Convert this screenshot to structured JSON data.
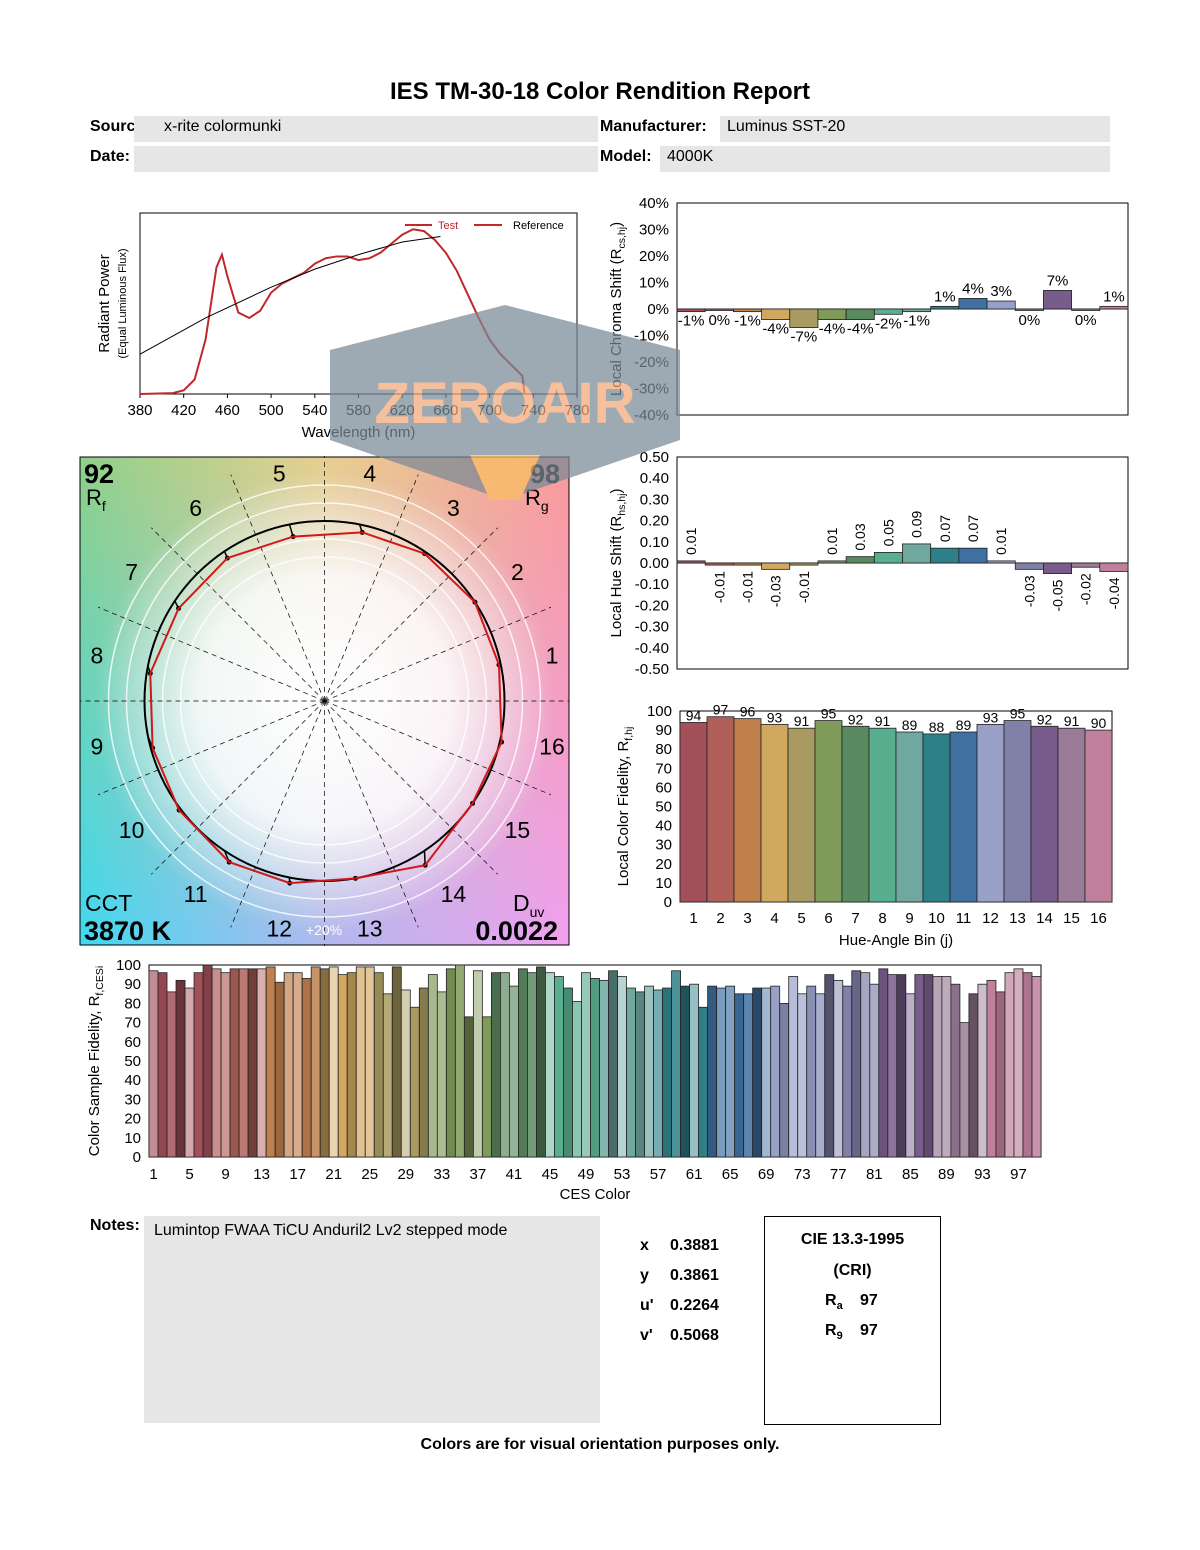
{
  "title": "IES TM-30-18 Color Rendition Report",
  "header": {
    "source_label": "Source:",
    "source": "x-rite colormunki",
    "manufacturer_label": "Manufacturer:",
    "manufacturer": "Luminus SST-20",
    "date_label": "Date:",
    "date": "",
    "model_label": "Model:",
    "model": "4000K"
  },
  "metrics": {
    "rf": "92",
    "rf_label": "R",
    "rf_sub": "f",
    "rg": "98",
    "rg_label": "R",
    "rg_sub": "g",
    "cct_label": "CCT",
    "cct": "3870 K",
    "duv_label": "D",
    "duv_sub": "uv",
    "duv": "0.0022",
    "ring_label": "+20%"
  },
  "chromaticity": {
    "x_label": "x",
    "x": "0.3881",
    "y_label": "y",
    "y": "0.3861",
    "u_label": "u'",
    "u": "0.2264",
    "v_label": "v'",
    "v": "0.5068"
  },
  "cri": {
    "title": "CIE 13.3-1995",
    "subtitle": "(CRI)",
    "ra_label": "R",
    "ra_sub": "a",
    "ra": "97",
    "r9_label": "R",
    "r9_sub": "9",
    "r9": "97"
  },
  "notes": {
    "label": "Notes:",
    "text": "Lumintop FWAA TiCU Anduril2 Lv2 stepped mode"
  },
  "footer": "Colors are for visual orientation purposes only.",
  "watermark": "ZEROAIR",
  "bin_colors": [
    "#a3505a",
    "#b0605a",
    "#c0804e",
    "#d0a860",
    "#a89a60",
    "#809a5a",
    "#5a8a60",
    "#5aae90",
    "#70a8a0",
    "#2e8088",
    "#4070a0",
    "#98a0c8",
    "#8080a8",
    "#785c8c",
    "#9a7c98",
    "#c0809c"
  ],
  "chart_data": [
    {
      "type": "line",
      "id": "spectrum",
      "xlabel": "Wavelength (nm)",
      "ylabel": "Radiant Power",
      "ylabel2": "(Equal Luminous Flux)",
      "xlim": [
        380,
        780
      ],
      "xticks": [
        380,
        420,
        460,
        500,
        540,
        580,
        620,
        660,
        700,
        740,
        780
      ],
      "series": [
        {
          "name": "Test",
          "color": "#c0282d",
          "x": [
            380,
            410,
            420,
            430,
            440,
            450,
            455,
            460,
            470,
            480,
            490,
            500,
            510,
            520,
            530,
            540,
            550,
            560,
            570,
            580,
            590,
            600,
            610,
            620,
            630,
            640,
            650,
            660,
            670,
            680,
            690,
            700,
            710,
            720,
            730,
            732
          ],
          "y": [
            0,
            0.005,
            0.02,
            0.08,
            0.3,
            0.7,
            0.77,
            0.65,
            0.45,
            0.42,
            0.46,
            0.56,
            0.61,
            0.64,
            0.67,
            0.72,
            0.75,
            0.76,
            0.76,
            0.74,
            0.75,
            0.78,
            0.83,
            0.88,
            0.91,
            0.9,
            0.85,
            0.78,
            0.68,
            0.55,
            0.42,
            0.3,
            0.22,
            0.16,
            0.1,
            0
          ]
        },
        {
          "name": "Reference",
          "color": "#000000",
          "x": [
            380,
            440,
            500,
            540,
            580,
            620,
            655
          ],
          "y": [
            0.22,
            0.42,
            0.59,
            0.69,
            0.77,
            0.84,
            0.87
          ]
        }
      ]
    },
    {
      "type": "bar",
      "id": "chroma",
      "ylabel": "Local Chroma Shift (R",
      "ylabel_sub": "cs,hj",
      "ylim": [
        -40,
        40
      ],
      "yticks": [
        "40%",
        "30%",
        "20%",
        "10%",
        "0%",
        "-10%",
        "-20%",
        "-30%",
        "-40%"
      ],
      "values": [
        -1,
        0,
        -1,
        -4,
        -7,
        -4,
        -4,
        -2,
        -1,
        1,
        4,
        3,
        0,
        7,
        0,
        1
      ],
      "labels": [
        "-1%",
        "0%",
        "-1%",
        "-4%",
        "-7%",
        "-4%",
        "-4%",
        "-2%",
        "-1%",
        "1%",
        "4%",
        "3%",
        "0%",
        "7%",
        "0%",
        "1%"
      ]
    },
    {
      "type": "bar",
      "id": "hue",
      "ylabel": "Local Hue Shift (R",
      "ylabel_sub": "hs,hj",
      "ylim": [
        -0.5,
        0.5
      ],
      "yticks": [
        "0.50",
        "0.40",
        "0.30",
        "0.20",
        "0.10",
        "0.00",
        "-0.10",
        "-0.20",
        "-0.30",
        "-0.40",
        "-0.50"
      ],
      "values": [
        0.01,
        -0.01,
        -0.01,
        -0.03,
        -0.01,
        0.01,
        0.03,
        0.05,
        0.09,
        0.07,
        0.07,
        0.01,
        -0.03,
        -0.05,
        -0.02,
        -0.04
      ],
      "labels": [
        "0.01",
        "-0.01",
        "-0.01",
        "-0.03",
        "-0.01",
        "0.01",
        "0.03",
        "0.05",
        "0.09",
        "0.07",
        "0.07",
        "0.01",
        "-0.03",
        "-0.05",
        "-0.02",
        "-0.04"
      ]
    },
    {
      "type": "bar",
      "id": "fidelity",
      "ylabel": "Local Color Fidelity, R",
      "ylabel_sub": "f,hj",
      "xlabel": "Hue-Angle Bin (j)",
      "ylim": [
        0,
        100
      ],
      "yticks": [
        0,
        10,
        20,
        30,
        40,
        50,
        60,
        70,
        80,
        90,
        100
      ],
      "categories": [
        "1",
        "2",
        "3",
        "4",
        "5",
        "6",
        "7",
        "8",
        "9",
        "10",
        "11",
        "12",
        "13",
        "14",
        "15",
        "16"
      ],
      "values": [
        94,
        97,
        96,
        93,
        91,
        95,
        92,
        91,
        89,
        88,
        89,
        93,
        95,
        92,
        91,
        90
      ]
    },
    {
      "type": "bar",
      "id": "ces",
      "ylabel": "Color Sample Fidelity, R",
      "ylabel_sub": "f,CESi",
      "xlabel": "CES Color",
      "ylim": [
        0,
        100
      ],
      "yticks": [
        0,
        10,
        20,
        30,
        40,
        50,
        60,
        70,
        80,
        90,
        100
      ],
      "xticks": [
        1,
        5,
        9,
        13,
        17,
        21,
        25,
        29,
        33,
        37,
        41,
        45,
        49,
        53,
        57,
        61,
        65,
        69,
        73,
        77,
        81,
        85,
        89,
        93,
        97
      ],
      "values": [
        97,
        96,
        86,
        92,
        88,
        96,
        100,
        98,
        96,
        98,
        98,
        98,
        98,
        99,
        91,
        96,
        96,
        93,
        99,
        98,
        99,
        95,
        96,
        99,
        99,
        96,
        85,
        99,
        87,
        78,
        88,
        95,
        86,
        98,
        100,
        73,
        97,
        73,
        96,
        96,
        89,
        98,
        96,
        99,
        96,
        94,
        88,
        81,
        96,
        93,
        92,
        97,
        94,
        88,
        86,
        89,
        87,
        88,
        97,
        89,
        90,
        78,
        89,
        88,
        89,
        85,
        85,
        88,
        88,
        89,
        80,
        94,
        85,
        89,
        85,
        95,
        92,
        89,
        97,
        96,
        90,
        98,
        95,
        95,
        85,
        95,
        95,
        94,
        94,
        90,
        70,
        85,
        90,
        92,
        86,
        96,
        98,
        96,
        94
      ]
    },
    {
      "type": "vector",
      "id": "cvg",
      "bins": 16
    }
  ]
}
